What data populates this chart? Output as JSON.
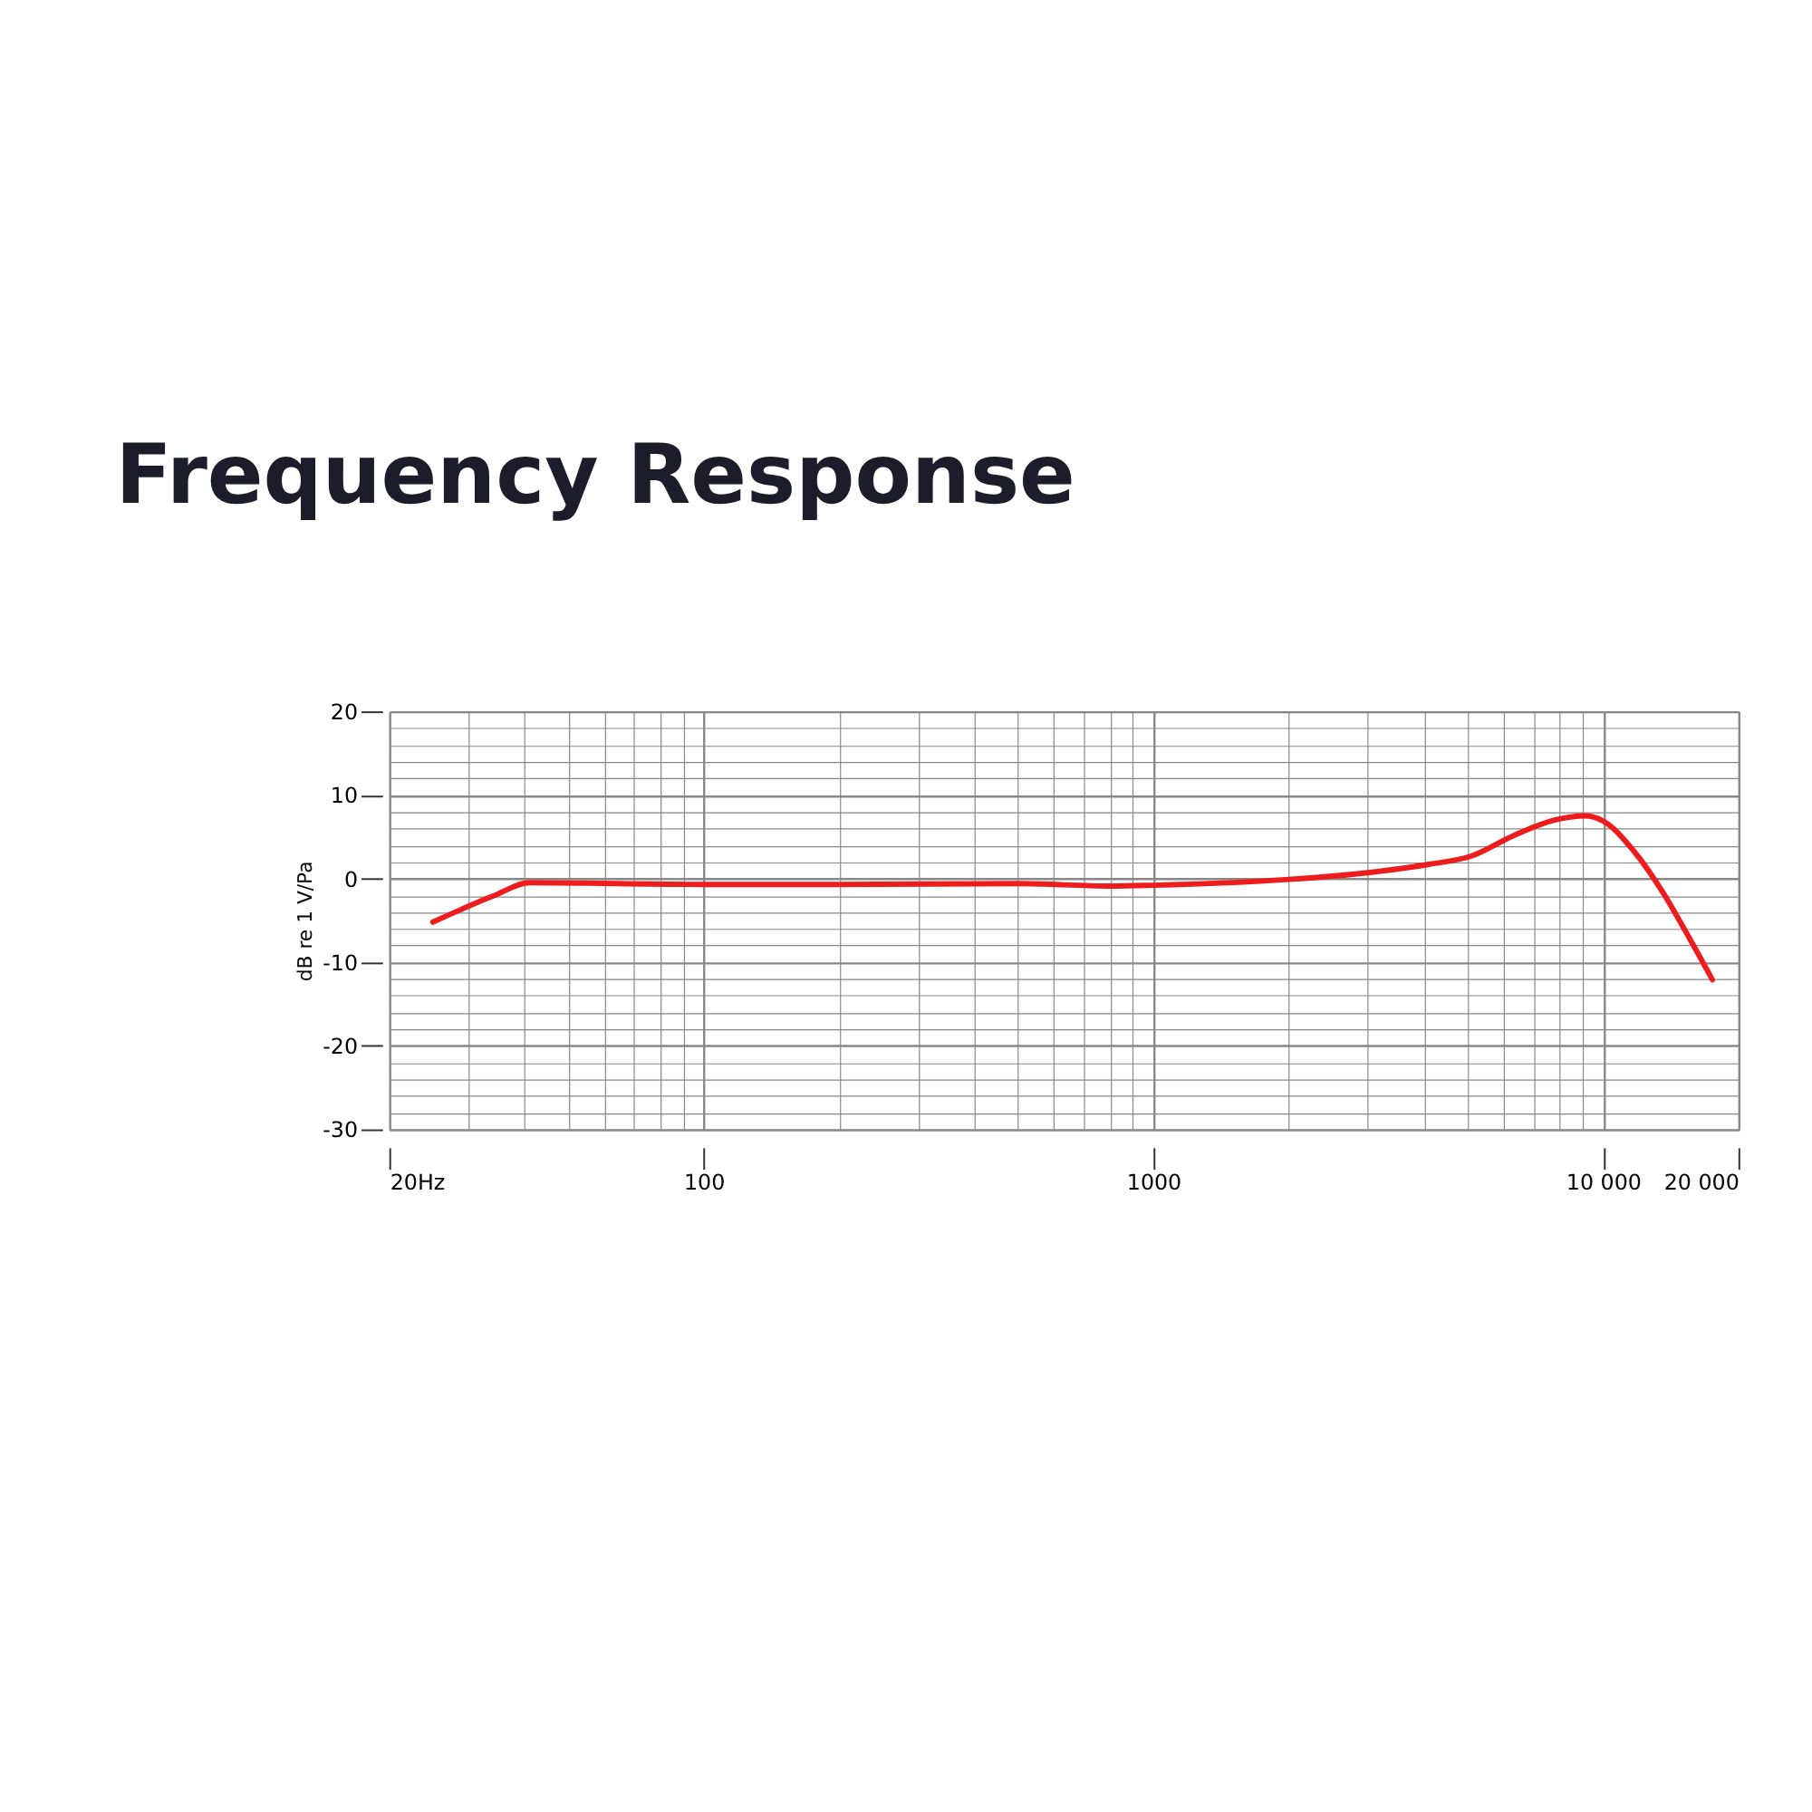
{
  "chart_data": {
    "type": "line",
    "title": "Frequency Response",
    "ylabel": "dB re 1 V/Pa",
    "log": "x",
    "grid": true,
    "line_style": "solid",
    "marker": "none",
    "xlim": [
      20,
      20000
    ],
    "ylim": [
      -30,
      20
    ],
    "xticks": [
      {
        "value": 20,
        "label": "20Hz"
      },
      {
        "value": 30,
        "label": null
      },
      {
        "value": 40,
        "label": null
      },
      {
        "value": 50,
        "label": null
      },
      {
        "value": 60,
        "label": null
      },
      {
        "value": 70,
        "label": null
      },
      {
        "value": 80,
        "label": null
      },
      {
        "value": 90,
        "label": null
      },
      100,
      {
        "value": 200,
        "label": null
      },
      {
        "value": 300,
        "label": null
      },
      {
        "value": 400,
        "label": null
      },
      {
        "value": 500,
        "label": null
      },
      {
        "value": 600,
        "label": null
      },
      {
        "value": 700,
        "label": null
      },
      {
        "value": 800,
        "label": null
      },
      {
        "value": 900,
        "label": null
      },
      1000,
      {
        "value": 2000,
        "label": null
      },
      {
        "value": 3000,
        "label": null
      },
      {
        "value": 4000,
        "label": null
      },
      {
        "value": 5000,
        "label": null
      },
      {
        "value": 6000,
        "label": null
      },
      {
        "value": 7000,
        "label": null
      },
      {
        "value": 8000,
        "label": null
      },
      {
        "value": 9000,
        "label": null
      },
      {
        "value": 10000,
        "label": "10 000"
      },
      {
        "value": 20000,
        "label": "20 000"
      }
    ],
    "yticks": [
      -30,
      {
        "value": -28,
        "label": null
      },
      {
        "value": -26,
        "label": null
      },
      {
        "value": -24,
        "label": null
      },
      {
        "value": -22,
        "label": null
      },
      -20,
      {
        "value": -18,
        "label": null
      },
      {
        "value": -16,
        "label": null
      },
      {
        "value": -14,
        "label": null
      },
      {
        "value": -12,
        "label": null
      },
      -10,
      {
        "value": -8,
        "label": null
      },
      {
        "value": -6,
        "label": null
      },
      {
        "value": -4,
        "label": null
      },
      {
        "value": -2,
        "label": null
      },
      0,
      {
        "value": 2,
        "label": null
      },
      {
        "value": 4,
        "label": null
      },
      {
        "value": 6,
        "label": null
      },
      {
        "value": 8,
        "label": null
      },
      10,
      {
        "value": 12,
        "label": null
      },
      {
        "value": 14,
        "label": null
      },
      {
        "value": 16,
        "label": null
      },
      {
        "value": 18,
        "label": null
      },
      20
    ],
    "x": [
      25,
      34,
      41,
      100,
      200,
      500,
      800,
      1000,
      2000,
      3000,
      4100,
      5100,
      6300,
      7800,
      9100,
      10000,
      11700,
      13600,
      15400,
      17500
    ],
    "series": [
      {
        "color": "#ee1c1c",
        "values": [
          -5.2,
          -2.1,
          -0.5,
          -0.7,
          -0.7,
          -0.6,
          -0.9,
          -0.8,
          -0.1,
          0.7,
          1.7,
          2.7,
          5.1,
          7.0,
          7.5,
          6.9,
          3.3,
          -1.7,
          -6.7,
          -12.1
        ]
      }
    ]
  }
}
